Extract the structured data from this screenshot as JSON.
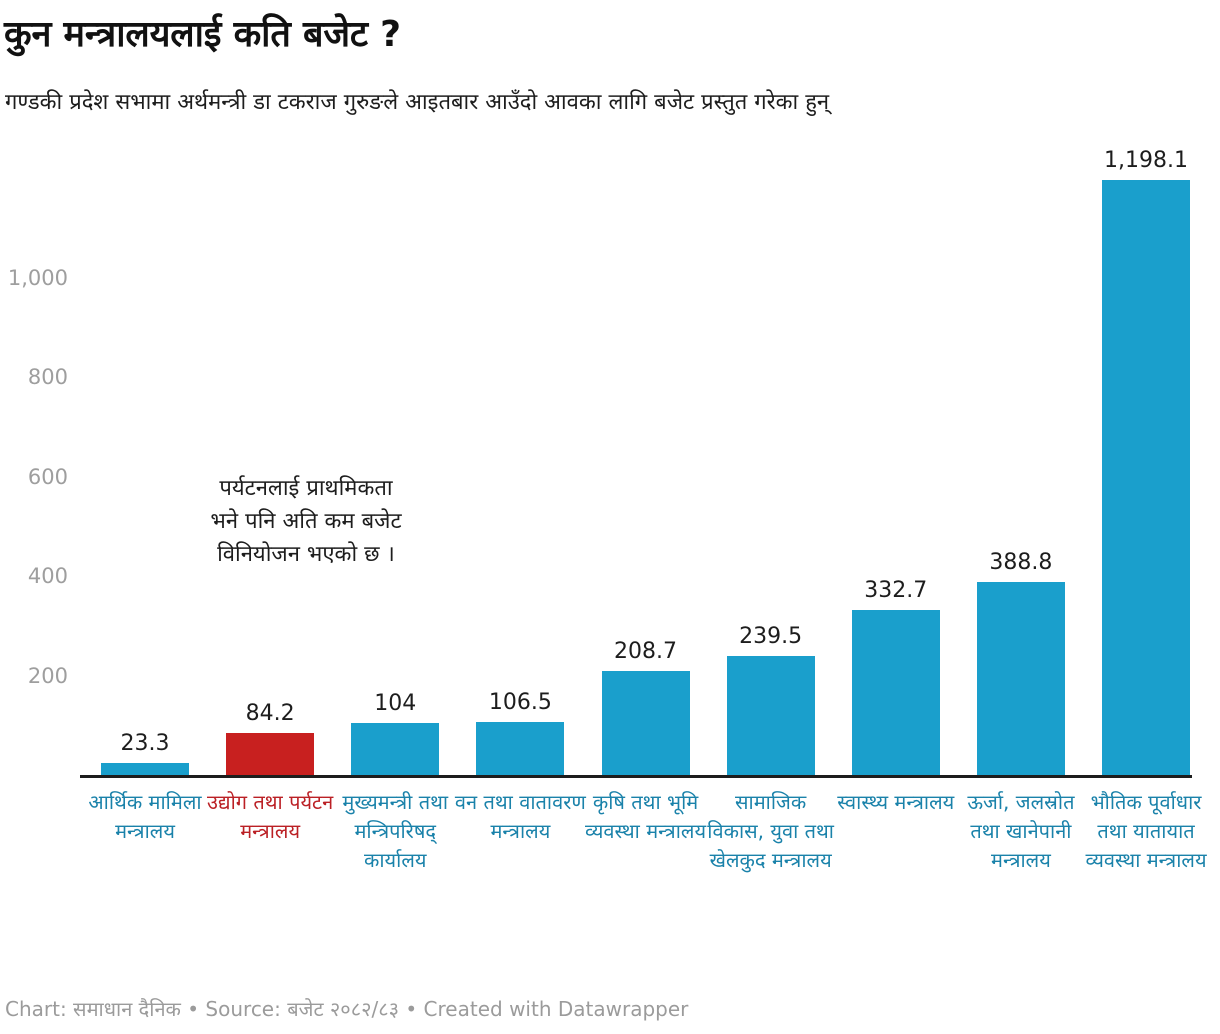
{
  "header": {
    "title": "कुन मन्त्रालयलाई कति बजेट ?",
    "subtitle": "गण्डकी प्रदेश सभामा अर्थमन्त्री डा टकराज गुरुङले आइतबार आउँदो आवका लागि बजेट प्रस्तुत गरेका हुन्"
  },
  "annotation": {
    "line1": "पर्यटनलाई प्राथमिकता",
    "line2": "भने पनि अति कम बजेट",
    "line3": "विनियोजन भएको छ ।"
  },
  "footer": {
    "text": "Chart: समाधान दैनिक • Source: बजेट २०८२/८३ • Created with Datawrapper"
  },
  "chart_data": {
    "type": "bar",
    "title": "कुन मन्त्रालयलाई कति बजेट ?",
    "subtitle": "गण्डकी प्रदेश सभामा अर्थमन्त्री डा टकराज गुरुङले आइतबार आउँदो आवका लागि बजेट प्रस्तुत गरेका हुन्",
    "categories": [
      "आर्थिक मामिला मन्त्रालय",
      "उद्योग तथा पर्यटन मन्त्रालय",
      "मुख्यमन्त्री तथा मन्त्रिपरिषद् कार्यालय",
      "वन तथा वातावरण मन्त्रालय",
      "कृषि तथा भूमि व्यवस्था मन्त्रालय",
      "सामाजिक विकास, युवा तथा खेलकुद मन्त्रालय",
      "स्वास्थ्य मन्त्रालय",
      "ऊर्जा, जलस्रोत तथा खानेपानी मन्त्रालय",
      "भौतिक पूर्वाधार तथा यातायात व्यवस्था मन्त्रालय"
    ],
    "values": [
      23.3,
      84.2,
      104,
      106.5,
      208.7,
      239.5,
      332.7,
      388.8,
      1198.1
    ],
    "value_labels": [
      "23.3",
      "84.2",
      "104",
      "106.5",
      "208.7",
      "239.5",
      "332.7",
      "388.8",
      "1,198.1"
    ],
    "highlight_index": 1,
    "bar_color": "#1a9fcc",
    "highlight_color": "#c8201f",
    "category_color": "#1a82aa",
    "highlight_category_color": "#bb2025",
    "axis_color": "#1d1d1d",
    "tick_color": "#9e9e9e",
    "yticks": [
      200,
      400,
      600,
      800,
      1000
    ],
    "ytick_labels": [
      "200",
      "400",
      "600",
      "800",
      "1,000"
    ],
    "ylim": [
      0,
      1250
    ],
    "grid": false,
    "legend": "none",
    "xlabel": "",
    "ylabel": ""
  }
}
